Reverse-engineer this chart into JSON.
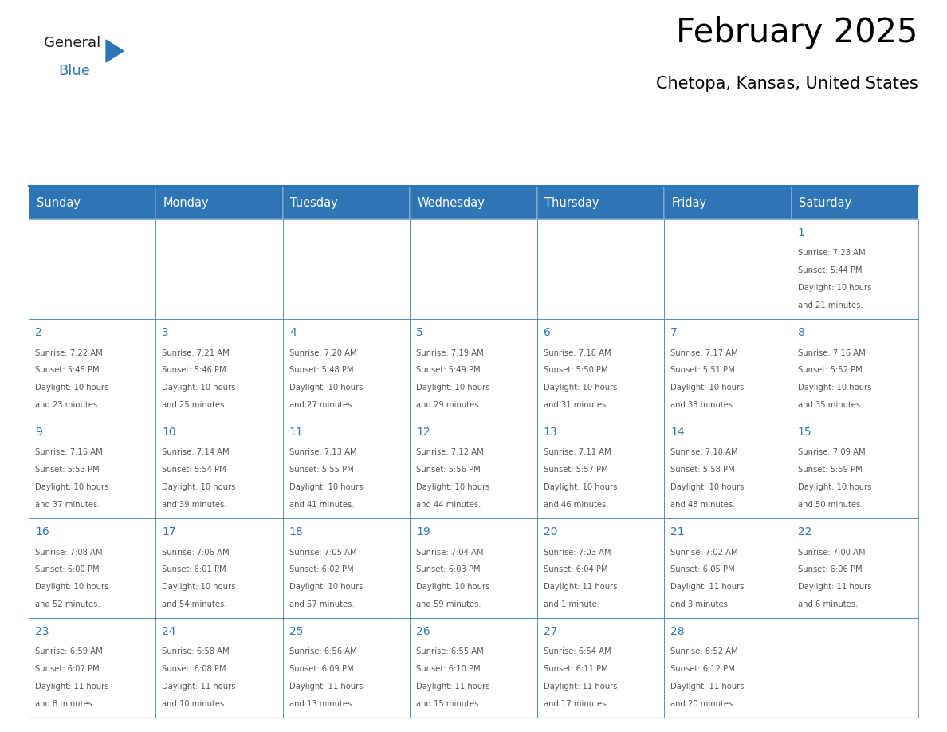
{
  "title": "February 2025",
  "subtitle": "Chetopa, Kansas, United States",
  "header_color": "#2E75B6",
  "header_text_color": "#FFFFFF",
  "day_names": [
    "Sunday",
    "Monday",
    "Tuesday",
    "Wednesday",
    "Thursday",
    "Friday",
    "Saturday"
  ],
  "cell_bg_color": "#FFFFFF",
  "cell_border_color": "#2E75B6",
  "day_num_color": "#2E75B6",
  "info_text_color": "#555555",
  "logo_general_color": "#1a1a1a",
  "logo_blue_color": "#2E75B6",
  "days": [
    {
      "day": 1,
      "col": 6,
      "row": 0,
      "sunrise": "7:23 AM",
      "sunset": "5:44 PM",
      "daylight": "10 hours and 21 minutes."
    },
    {
      "day": 2,
      "col": 0,
      "row": 1,
      "sunrise": "7:22 AM",
      "sunset": "5:45 PM",
      "daylight": "10 hours and 23 minutes."
    },
    {
      "day": 3,
      "col": 1,
      "row": 1,
      "sunrise": "7:21 AM",
      "sunset": "5:46 PM",
      "daylight": "10 hours and 25 minutes."
    },
    {
      "day": 4,
      "col": 2,
      "row": 1,
      "sunrise": "7:20 AM",
      "sunset": "5:48 PM",
      "daylight": "10 hours and 27 minutes."
    },
    {
      "day": 5,
      "col": 3,
      "row": 1,
      "sunrise": "7:19 AM",
      "sunset": "5:49 PM",
      "daylight": "10 hours and 29 minutes."
    },
    {
      "day": 6,
      "col": 4,
      "row": 1,
      "sunrise": "7:18 AM",
      "sunset": "5:50 PM",
      "daylight": "10 hours and 31 minutes."
    },
    {
      "day": 7,
      "col": 5,
      "row": 1,
      "sunrise": "7:17 AM",
      "sunset": "5:51 PM",
      "daylight": "10 hours and 33 minutes."
    },
    {
      "day": 8,
      "col": 6,
      "row": 1,
      "sunrise": "7:16 AM",
      "sunset": "5:52 PM",
      "daylight": "10 hours and 35 minutes."
    },
    {
      "day": 9,
      "col": 0,
      "row": 2,
      "sunrise": "7:15 AM",
      "sunset": "5:53 PM",
      "daylight": "10 hours and 37 minutes."
    },
    {
      "day": 10,
      "col": 1,
      "row": 2,
      "sunrise": "7:14 AM",
      "sunset": "5:54 PM",
      "daylight": "10 hours and 39 minutes."
    },
    {
      "day": 11,
      "col": 2,
      "row": 2,
      "sunrise": "7:13 AM",
      "sunset": "5:55 PM",
      "daylight": "10 hours and 41 minutes."
    },
    {
      "day": 12,
      "col": 3,
      "row": 2,
      "sunrise": "7:12 AM",
      "sunset": "5:56 PM",
      "daylight": "10 hours and 44 minutes."
    },
    {
      "day": 13,
      "col": 4,
      "row": 2,
      "sunrise": "7:11 AM",
      "sunset": "5:57 PM",
      "daylight": "10 hours and 46 minutes."
    },
    {
      "day": 14,
      "col": 5,
      "row": 2,
      "sunrise": "7:10 AM",
      "sunset": "5:58 PM",
      "daylight": "10 hours and 48 minutes."
    },
    {
      "day": 15,
      "col": 6,
      "row": 2,
      "sunrise": "7:09 AM",
      "sunset": "5:59 PM",
      "daylight": "10 hours and 50 minutes."
    },
    {
      "day": 16,
      "col": 0,
      "row": 3,
      "sunrise": "7:08 AM",
      "sunset": "6:00 PM",
      "daylight": "10 hours and 52 minutes."
    },
    {
      "day": 17,
      "col": 1,
      "row": 3,
      "sunrise": "7:06 AM",
      "sunset": "6:01 PM",
      "daylight": "10 hours and 54 minutes."
    },
    {
      "day": 18,
      "col": 2,
      "row": 3,
      "sunrise": "7:05 AM",
      "sunset": "6:02 PM",
      "daylight": "10 hours and 57 minutes."
    },
    {
      "day": 19,
      "col": 3,
      "row": 3,
      "sunrise": "7:04 AM",
      "sunset": "6:03 PM",
      "daylight": "10 hours and 59 minutes."
    },
    {
      "day": 20,
      "col": 4,
      "row": 3,
      "sunrise": "7:03 AM",
      "sunset": "6:04 PM",
      "daylight": "11 hours and 1 minute."
    },
    {
      "day": 21,
      "col": 5,
      "row": 3,
      "sunrise": "7:02 AM",
      "sunset": "6:05 PM",
      "daylight": "11 hours and 3 minutes."
    },
    {
      "day": 22,
      "col": 6,
      "row": 3,
      "sunrise": "7:00 AM",
      "sunset": "6:06 PM",
      "daylight": "11 hours and 6 minutes."
    },
    {
      "day": 23,
      "col": 0,
      "row": 4,
      "sunrise": "6:59 AM",
      "sunset": "6:07 PM",
      "daylight": "11 hours and 8 minutes."
    },
    {
      "day": 24,
      "col": 1,
      "row": 4,
      "sunrise": "6:58 AM",
      "sunset": "6:08 PM",
      "daylight": "11 hours and 10 minutes."
    },
    {
      "day": 25,
      "col": 2,
      "row": 4,
      "sunrise": "6:56 AM",
      "sunset": "6:09 PM",
      "daylight": "11 hours and 13 minutes."
    },
    {
      "day": 26,
      "col": 3,
      "row": 4,
      "sunrise": "6:55 AM",
      "sunset": "6:10 PM",
      "daylight": "11 hours and 15 minutes."
    },
    {
      "day": 27,
      "col": 4,
      "row": 4,
      "sunrise": "6:54 AM",
      "sunset": "6:11 PM",
      "daylight": "11 hours and 17 minutes."
    },
    {
      "day": 28,
      "col": 5,
      "row": 4,
      "sunrise": "6:52 AM",
      "sunset": "6:12 PM",
      "daylight": "11 hours and 20 minutes."
    }
  ]
}
